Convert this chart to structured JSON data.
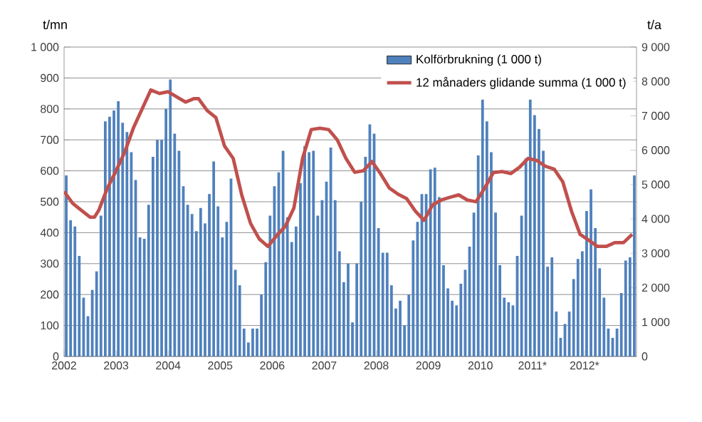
{
  "chart_data": {
    "type": "bar",
    "ylabel": "t/mn",
    "y2label": "t/a",
    "x": [
      "2002-01",
      "2002-02",
      "2002-03",
      "2002-04",
      "2002-05",
      "2002-06",
      "2002-07",
      "2002-08",
      "2002-09",
      "2002-10",
      "2002-11",
      "2002-12",
      "2003-01",
      "2003-02",
      "2003-03",
      "2003-04",
      "2003-05",
      "2003-06",
      "2003-07",
      "2003-08",
      "2003-09",
      "2003-10",
      "2003-11",
      "2003-12",
      "2004-01",
      "2004-02",
      "2004-03",
      "2004-04",
      "2004-05",
      "2004-06",
      "2004-07",
      "2004-08",
      "2004-09",
      "2004-10",
      "2004-11",
      "2004-12",
      "2005-01",
      "2005-02",
      "2005-03",
      "2005-04",
      "2005-05",
      "2005-06",
      "2005-07",
      "2005-08",
      "2005-09",
      "2005-10",
      "2005-11",
      "2005-12",
      "2006-01",
      "2006-02",
      "2006-03",
      "2006-04",
      "2006-05",
      "2006-06",
      "2006-07",
      "2006-08",
      "2006-09",
      "2006-10",
      "2006-11",
      "2006-12",
      "2007-01",
      "2007-02",
      "2007-03",
      "2007-04",
      "2007-05",
      "2007-06",
      "2007-07",
      "2007-08",
      "2007-09",
      "2007-10",
      "2007-11",
      "2007-12",
      "2008-01",
      "2008-02",
      "2008-03",
      "2008-04",
      "2008-05",
      "2008-06",
      "2008-07",
      "2008-08",
      "2008-09",
      "2008-10",
      "2008-11",
      "2008-12",
      "2009-01",
      "2009-02",
      "2009-03",
      "2009-04",
      "2009-05",
      "2009-06",
      "2009-07",
      "2009-08",
      "2009-09",
      "2009-10",
      "2009-11",
      "2009-12",
      "2010-01",
      "2010-02",
      "2010-03",
      "2010-04",
      "2010-05",
      "2010-06",
      "2010-07",
      "2010-08",
      "2010-09",
      "2010-10",
      "2010-11",
      "2010-12",
      "2011-01",
      "2011-02",
      "2011-03",
      "2011-04",
      "2011-05",
      "2011-06",
      "2011-07",
      "2011-08",
      "2011-09",
      "2011-10",
      "2011-11",
      "2011-12",
      "2012-01",
      "2012-02",
      "2012-03",
      "2012-04",
      "2012-05",
      "2012-06",
      "2012-07",
      "2012-08",
      "2012-09",
      "2012-10",
      "2012-11",
      "2012-12"
    ],
    "series": [
      {
        "name": "Kolförbrukning (1 000 t)",
        "color": "#4f81bd",
        "values": [
          585,
          440,
          420,
          325,
          190,
          130,
          215,
          275,
          455,
          760,
          775,
          795,
          825,
          755,
          725,
          660,
          570,
          385,
          380,
          490,
          645,
          700,
          700,
          800,
          895,
          720,
          665,
          550,
          490,
          460,
          405,
          480,
          430,
          525,
          630,
          485,
          385,
          435,
          575,
          280,
          230,
          90,
          45,
          90,
          90,
          200,
          305,
          455,
          550,
          595,
          665,
          450,
          370,
          420,
          560,
          680,
          660,
          665,
          455,
          505,
          565,
          675,
          505,
          340,
          240,
          300,
          110,
          300,
          500,
          645,
          750,
          720,
          415,
          335,
          335,
          230,
          155,
          180,
          100,
          200,
          375,
          435,
          525,
          525,
          605,
          610,
          515,
          295,
          220,
          180,
          165,
          235,
          280,
          355,
          465,
          650,
          830,
          760,
          660,
          465,
          295,
          190,
          175,
          165,
          325,
          455,
          640,
          830,
          780,
          735,
          665,
          290,
          320,
          145,
          60,
          105,
          145,
          250,
          315,
          340,
          470,
          540,
          415,
          285,
          190,
          90,
          60,
          90,
          205,
          310,
          320,
          585
        ]
      },
      {
        "name": "12 månaders glidande summa (1 000 t)",
        "type": "line",
        "axis": "y2",
        "color": "#c0504d",
        "x": [
          "2002-01",
          "2002-03",
          "2002-05",
          "2002-07",
          "2002-08",
          "2002-09",
          "2002-11",
          "2003-01",
          "2003-03",
          "2003-05",
          "2003-07",
          "2003-09",
          "2003-11",
          "2004-01",
          "2004-03",
          "2004-05",
          "2004-07",
          "2004-08",
          "2004-10",
          "2004-12",
          "2005-02",
          "2005-04",
          "2005-06",
          "2005-08",
          "2005-10",
          "2005-12",
          "2006-02",
          "2006-04",
          "2006-06",
          "2006-08",
          "2006-10",
          "2006-12",
          "2007-02",
          "2007-04",
          "2007-06",
          "2007-08",
          "2007-10",
          "2007-12",
          "2008-02",
          "2008-04",
          "2008-06",
          "2008-08",
          "2008-10",
          "2008-12",
          "2009-02",
          "2009-04",
          "2009-06",
          "2009-08",
          "2009-10",
          "2009-12",
          "2010-02",
          "2010-04",
          "2010-06",
          "2010-08",
          "2010-10",
          "2010-12",
          "2011-02",
          "2011-04",
          "2011-06",
          "2011-08",
          "2011-10",
          "2011-12",
          "2012-02",
          "2012-04",
          "2012-06",
          "2012-08",
          "2012-10",
          "2012-12"
        ],
        "values": [
          4800,
          4450,
          4250,
          4050,
          4050,
          4250,
          4900,
          5400,
          5950,
          6650,
          7200,
          7750,
          7650,
          7700,
          7550,
          7400,
          7500,
          7500,
          7150,
          6950,
          6120,
          5760,
          4680,
          3870,
          3420,
          3200,
          3510,
          3780,
          4320,
          5760,
          6600,
          6640,
          6600,
          6300,
          5760,
          5360,
          5400,
          5670,
          5310,
          4900,
          4720,
          4590,
          4230,
          3960,
          4410,
          4550,
          4630,
          4700,
          4550,
          4500,
          4900,
          5350,
          5380,
          5320,
          5500,
          5760,
          5700,
          5530,
          5450,
          5080,
          4230,
          3550,
          3380,
          3200,
          3200,
          3310,
          3310,
          3550
        ]
      }
    ],
    "xlim": [
      "2002",
      "2013"
    ],
    "xticks": [
      {
        "value": "2002",
        "label": "2002"
      },
      {
        "value": "2003",
        "label": "2003"
      },
      {
        "value": "2004",
        "label": "2004"
      },
      {
        "value": "2005",
        "label": "2005"
      },
      {
        "value": "2006",
        "label": "2006"
      },
      {
        "value": "2007",
        "label": "2007"
      },
      {
        "value": "2008",
        "label": "2008"
      },
      {
        "value": "2009",
        "label": "2009"
      },
      {
        "value": "2010",
        "label": "2010"
      },
      {
        "value": "2011",
        "label": "2011*"
      },
      {
        "value": "2012",
        "label": "2012*"
      }
    ],
    "ylim": [
      0,
      1000
    ],
    "yticks": [
      0,
      100,
      200,
      300,
      400,
      500,
      600,
      700,
      800,
      900,
      {
        "value": 1000,
        "label": "1 000"
      }
    ],
    "y2lim": [
      0,
      9000
    ],
    "y2ticks": [
      0,
      {
        "value": 1000,
        "label": "1 000"
      },
      {
        "value": 2000,
        "label": "2 000"
      },
      {
        "value": 3000,
        "label": "3 000"
      },
      {
        "value": 4000,
        "label": "4 000"
      },
      {
        "value": 5000,
        "label": "5 000"
      },
      {
        "value": 6000,
        "label": "6 000"
      },
      {
        "value": 7000,
        "label": "7 000"
      },
      {
        "value": 8000,
        "label": "8 000"
      },
      {
        "value": 9000,
        "label": "9 000"
      }
    ],
    "grid": "y",
    "legend": "top right"
  }
}
